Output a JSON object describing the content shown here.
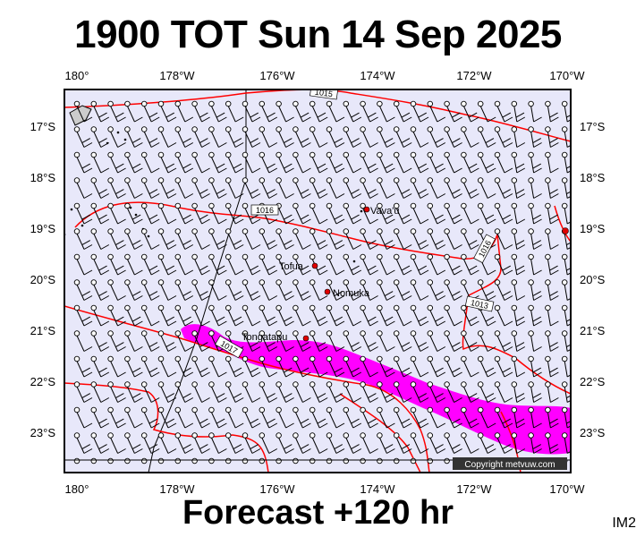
{
  "title": "1900 TOT Sun 14 Sep 2025",
  "footer": "Forecast +120 hr",
  "corner_label": "IM2",
  "copyright": "Copyright metvuw.com",
  "colors": {
    "ocean": "#e8e8fa",
    "isobar": "#ff0000",
    "rain": "#ff00ff",
    "barb": "#000000",
    "town": "#e00000"
  },
  "lon_ticks": [
    "180°",
    "178°W",
    "176°W",
    "174°W",
    "172°W",
    "170°W"
  ],
  "lat_ticks": [
    "17°S",
    "18°S",
    "19°S",
    "20°S",
    "21°S",
    "22°S",
    "23°S"
  ],
  "places": [
    {
      "name": "Vava'u",
      "lon": -174.0,
      "lat": -18.65
    },
    {
      "name": "Tofua",
      "lon": -175.1,
      "lat": -19.75
    },
    {
      "name": "Nomuka",
      "lon": -174.8,
      "lat": -20.25
    },
    {
      "name": "Tongatapu",
      "lon": -175.2,
      "lat": -21.15
    }
  ],
  "isobar_labels": [
    "1015",
    "1016",
    "1016",
    "1013",
    "1017"
  ],
  "wind_barb_pattern": "north-westward staffs with 1-2 feather barbs across the domain"
}
